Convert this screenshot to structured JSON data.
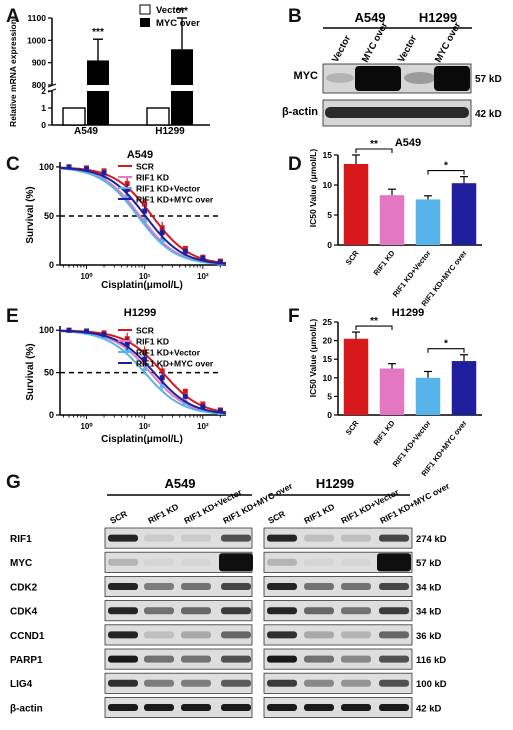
{
  "figure": {
    "panel_letters": {
      "A": "A",
      "B": "B",
      "C": "C",
      "D": "D",
      "E": "E",
      "F": "F",
      "G": "G"
    },
    "colors": {
      "scr": "#d7191c",
      "rif1": "#e377c2",
      "vector": "#56b4e9",
      "myc": "#1f1f9e",
      "grey": "#555555"
    }
  },
  "panel_a": {
    "ylabel": "Relative mRNA expression",
    "legend": [
      "Vector",
      "MYC over"
    ],
    "groups": [
      "A549",
      "H1299"
    ],
    "significance": [
      "***",
      "***"
    ]
  },
  "panel_b": {
    "cell_lines": [
      "A549",
      "H1299"
    ],
    "lanes": [
      "Vector",
      "MYC over",
      "Vector",
      "MYC over"
    ],
    "proteins": [
      "MYC",
      "β-actin"
    ],
    "sizes": [
      "57 kD",
      "42 kD"
    ]
  },
  "panel_c": {
    "title": "A549",
    "xlabel": "Cisplatin(μmol/L)",
    "ylabel": "Survival (%)",
    "legend": [
      "SCR",
      "RIF1 KD",
      "RIF1 KD+Vector",
      "RIF1 KD+MYC over"
    ]
  },
  "panel_d": {
    "title": "A549",
    "ylabel": "IC50 Value (μmol/L)",
    "categories": [
      "SCR",
      "RIF1 KD",
      "RIF1 KD+Vector",
      "RIF1 KD+MYC over"
    ],
    "significance": [
      "**",
      "*"
    ]
  },
  "panel_e": {
    "title": "H1299",
    "xlabel": "Cisplatin(μmol/L)",
    "ylabel": "Survival (%)",
    "legend": [
      "SCR",
      "RIF1 KD",
      "RIF1 KD+Vector",
      "RIF1 KD+MYC over"
    ]
  },
  "panel_f": {
    "title": "H1299",
    "ylabel": "IC50 Value (μmol/L)",
    "categories": [
      "SCR",
      "RIF1 KD",
      "RIF1 KD+Vector",
      "RIF1 KD+MYC over"
    ],
    "significance": [
      "**",
      "*"
    ]
  },
  "panel_g": {
    "cell_lines": [
      "A549",
      "H1299"
    ],
    "lanes": [
      "SCR",
      "RIF1 KD",
      "RIF1 KD+Vector",
      "RIF1 KD+MYC over"
    ],
    "proteins": [
      "RIF1",
      "MYC",
      "CDK2",
      "CDK4",
      "CCND1",
      "PARP1",
      "LIG4",
      "β-actin"
    ],
    "sizes": [
      "274 kD",
      "57 kD",
      "34 kD",
      "34 kD",
      "36 kD",
      "116 kD",
      "100 kD",
      "42 kD"
    ]
  },
  "chart_data": [
    {
      "panel": "A",
      "type": "bar",
      "categories": [
        "A549",
        "H1299"
      ],
      "series": [
        {
          "name": "Vector",
          "values": [
            1,
            1
          ]
        },
        {
          "name": "MYC over",
          "values": [
            910,
            960
          ]
        }
      ],
      "errors": [
        [
          0,
          0
        ],
        [
          95,
          140
        ]
      ],
      "ylabel": "Relative mRNA expression",
      "yticks": [
        0,
        1,
        2,
        800,
        900,
        1000,
        1100
      ],
      "axis_break": true
    },
    {
      "panel": "C",
      "type": "line",
      "title": "A549",
      "xlabel": "Cisplatin(μmol/L)",
      "ylabel": "Survival (%)",
      "x": [
        0.5,
        1,
        2,
        5,
        10,
        20,
        50,
        100,
        200
      ],
      "xscale": "log",
      "xticks": [
        "10⁰",
        "10¹",
        "10²"
      ],
      "yticks": [
        0,
        50,
        100
      ],
      "ylim": [
        0,
        105
      ],
      "reference_line": 50,
      "series": [
        {
          "name": "SCR",
          "ic50": 13.5,
          "values": [
            100,
            99,
            96,
            83,
            62,
            38,
            17,
            8,
            4
          ]
        },
        {
          "name": "RIF1 KD",
          "ic50": 8.3,
          "values": [
            100,
            97,
            92,
            72,
            48,
            28,
            12,
            6,
            3
          ]
        },
        {
          "name": "RIF1 KD+Vector",
          "ic50": 7.6,
          "values": [
            100,
            97,
            90,
            70,
            46,
            26,
            11,
            5,
            2
          ]
        },
        {
          "name": "RIF1 KD+MYC over",
          "ic50": 10.3,
          "values": [
            100,
            98,
            94,
            77,
            55,
            33,
            14,
            7,
            3
          ]
        }
      ]
    },
    {
      "panel": "D",
      "type": "bar",
      "title": "A549",
      "ylabel": "IC50 Value (μmol/L)",
      "categories": [
        "SCR",
        "RIF1 KD",
        "RIF1 KD+Vector",
        "RIF1 KD+MYC over"
      ],
      "values": [
        13.5,
        8.3,
        7.6,
        10.3
      ],
      "errors": [
        1.5,
        1.0,
        0.6,
        1.1
      ],
      "ylim": [
        0,
        15
      ],
      "yticks": [
        0,
        5,
        10,
        15
      ]
    },
    {
      "panel": "E",
      "type": "line",
      "title": "H1299",
      "xlabel": "Cisplatin(μmol/L)",
      "ylabel": "Survival (%)",
      "x": [
        0.5,
        1,
        2,
        5,
        10,
        20,
        50,
        100,
        200
      ],
      "xscale": "log",
      "xticks": [
        "10⁰",
        "10¹",
        "10²"
      ],
      "yticks": [
        0,
        50,
        100
      ],
      "ylim": [
        0,
        105
      ],
      "reference_line": 50,
      "series": [
        {
          "name": "SCR",
          "ic50": 20.5,
          "values": [
            100,
            99,
            97,
            90,
            74,
            52,
            28,
            13,
            6
          ]
        },
        {
          "name": "RIF1 KD",
          "ic50": 12.5,
          "values": [
            100,
            98,
            94,
            81,
            60,
            40,
            18,
            8,
            4
          ]
        },
        {
          "name": "RIF1 KD+Vector",
          "ic50": 10,
          "values": [
            100,
            98,
            93,
            78,
            55,
            35,
            15,
            7,
            3
          ]
        },
        {
          "name": "RIF1 KD+MYC over",
          "ic50": 14.5,
          "values": [
            100,
            99,
            95,
            84,
            66,
            44,
            22,
            10,
            5
          ]
        }
      ]
    },
    {
      "panel": "F",
      "type": "bar",
      "title": "H1299",
      "ylabel": "IC50 Value (μmol/L)",
      "categories": [
        "SCR",
        "RIF1 KD",
        "RIF1 KD+Vector",
        "RIF1 KD+MYC over"
      ],
      "values": [
        20.5,
        12.5,
        10,
        14.5
      ],
      "errors": [
        1.8,
        1.3,
        1.7,
        1.7
      ],
      "ylim": [
        0,
        25
      ],
      "yticks": [
        0,
        5,
        10,
        15,
        20,
        25
      ]
    }
  ]
}
